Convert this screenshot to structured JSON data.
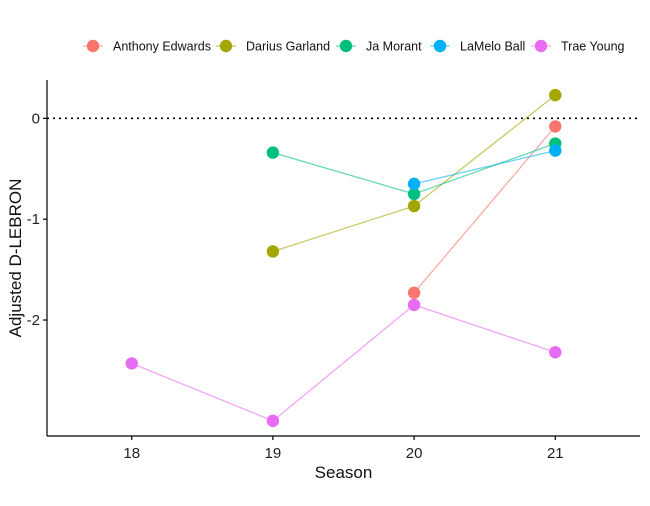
{
  "chart_data": {
    "type": "line",
    "title": "",
    "xlabel": "Season",
    "ylabel": "Adjusted D-LEBRON",
    "x": [
      18,
      19,
      20,
      21
    ],
    "x_ticks": [
      "18",
      "19",
      "20",
      "21"
    ],
    "y_ticks": [
      0,
      -1,
      -2
    ],
    "y_tick_labels": [
      "0",
      "-1",
      "-2"
    ],
    "xlim": [
      17.4,
      21.6
    ],
    "ylim": [
      -3.15,
      0.38
    ],
    "grid": false,
    "reference_line": {
      "y": 0,
      "style": "dotted"
    },
    "legend_position": "top",
    "series": [
      {
        "name": "Anthony Edwards",
        "color": "#F8766D",
        "points": [
          [
            20,
            -1.73
          ],
          [
            21,
            -0.08
          ]
        ]
      },
      {
        "name": "Darius Garland",
        "color": "#A3A500",
        "points": [
          [
            19,
            -1.32
          ],
          [
            20,
            -0.87
          ],
          [
            21,
            0.23
          ]
        ]
      },
      {
        "name": "Ja Morant",
        "color": "#00BF7D",
        "points": [
          [
            19,
            -0.34
          ],
          [
            20,
            -0.75
          ],
          [
            21,
            -0.25
          ]
        ]
      },
      {
        "name": "LaMelo Ball",
        "color": "#00B0F6",
        "points": [
          [
            20,
            -0.65
          ],
          [
            21,
            -0.32
          ]
        ]
      },
      {
        "name": "Trae Young",
        "color": "#E76BF3",
        "points": [
          [
            18,
            -2.43
          ],
          [
            19,
            -3.0
          ],
          [
            20,
            -1.85
          ],
          [
            21,
            -2.32
          ]
        ]
      }
    ]
  }
}
